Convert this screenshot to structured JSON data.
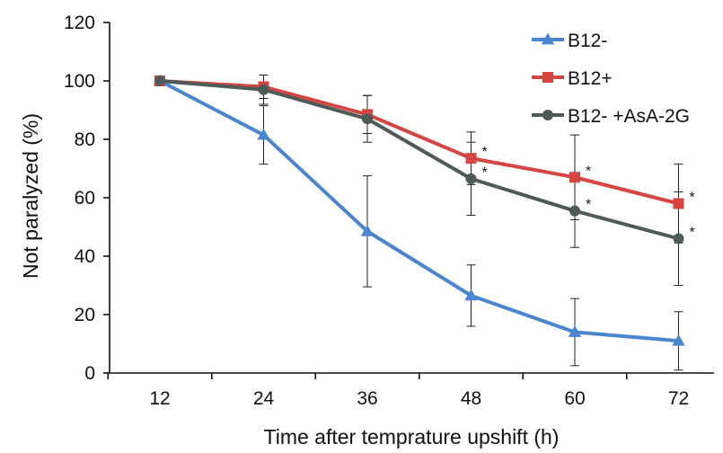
{
  "chart_data": {
    "type": "line",
    "title": "",
    "xlabel": "Time after temprature upshift (h)",
    "ylabel": "Not paralyzed (%)",
    "x": [
      12,
      24,
      36,
      48,
      60,
      72
    ],
    "x_tick_labels": [
      "12",
      "24",
      "36",
      "48",
      "60",
      "72"
    ],
    "ylim": [
      0,
      120
    ],
    "y_ticks": [
      0,
      20,
      40,
      60,
      80,
      100,
      120
    ],
    "y_tick_labels": [
      "0",
      "20",
      "40",
      "60",
      "80",
      "100",
      "120"
    ],
    "grid": false,
    "legend_position": "top-right",
    "significance_marker": "*",
    "series": [
      {
        "name": "B12-",
        "color": "#4a86d0",
        "marker": "triangle",
        "values": [
          100,
          81.5,
          48.5,
          26.5,
          14,
          11
        ],
        "error": [
          0,
          10,
          19,
          10.5,
          11.5,
          10
        ],
        "significant": [
          false,
          false,
          false,
          false,
          false,
          false
        ]
      },
      {
        "name": "B12+",
        "color": "#d64541",
        "marker": "square",
        "values": [
          100,
          98,
          88.5,
          73.5,
          67,
          58
        ],
        "error": [
          0,
          4,
          6.5,
          9,
          14.5,
          13.5
        ],
        "significant": [
          false,
          false,
          false,
          true,
          true,
          true
        ]
      },
      {
        "name": "B12- +AsA-2G",
        "color": "#4d5a57",
        "marker": "circle",
        "values": [
          100,
          97,
          87,
          66.5,
          55.5,
          46
        ],
        "error": [
          0,
          5,
          8,
          12.5,
          12.5,
          16
        ],
        "significant": [
          false,
          false,
          false,
          true,
          true,
          true
        ]
      }
    ]
  }
}
